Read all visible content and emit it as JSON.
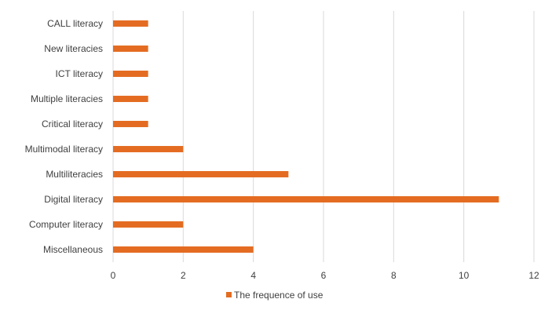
{
  "chart_data": {
    "type": "bar",
    "orientation": "horizontal",
    "title": "",
    "xlabel": "",
    "ylabel": "",
    "categories": [
      "CALL literacy",
      "New literacies",
      "ICT literacy",
      "Multiple literacies",
      "Critical literacy",
      "Multimodal literacy",
      "Multiliteracies",
      "Digital literacy",
      "Computer literacy",
      "Miscellaneous"
    ],
    "series": [
      {
        "name": "The frequence of use",
        "values": [
          1,
          1,
          1,
          1,
          1,
          2,
          5,
          11,
          2,
          4
        ],
        "color": "#E46C22"
      }
    ],
    "xlim": [
      0,
      12
    ],
    "xticks": [
      0,
      2,
      4,
      6,
      8,
      10,
      12
    ],
    "grid": "vertical",
    "legend_position": "bottom"
  }
}
